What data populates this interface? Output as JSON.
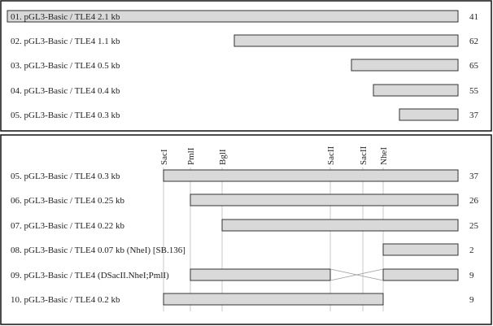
{
  "top_panel": {
    "rows": [
      {
        "label": "01. pGL3-Basic / TLE4 2.1 kb",
        "value": "41"
      },
      {
        "label": "02. pGL3-Basic / TLE4 1.1 kb",
        "value": "62"
      },
      {
        "label": "03. pGL3-Basic / TLE4 0.5 kb",
        "value": "65"
      },
      {
        "label": "04. pGL3-Basic / TLE4 0.4 kb",
        "value": "55"
      },
      {
        "label": "05. pGL3-Basic / TLE4 0.3 kb",
        "value": "37"
      }
    ]
  },
  "bottom_panel": {
    "sites": [
      "SacI",
      "PmlI",
      "BglI",
      "SacII",
      "SacII",
      "NheI"
    ],
    "rows": [
      {
        "label": "05. pGL3-Basic / TLE4 0.3 kb",
        "value": "37"
      },
      {
        "label": "06. pGL3-Basic / TLE4 0.25 kb",
        "value": "26"
      },
      {
        "label": "07. pGL3-Basic / TLE4 0.22 kb",
        "value": "25"
      },
      {
        "label": "08. pGL3-Basic / TLE4 0.07 kb (NheI) [SB.136]",
        "value": "2"
      },
      {
        "label": "09. pGL3-Basic / TLE4 (DSacII.NheI;PmlI)",
        "value": "9"
      },
      {
        "label": "10. pGL3-Basic / TLE4 0.2 kb",
        "value": "9"
      }
    ]
  }
}
